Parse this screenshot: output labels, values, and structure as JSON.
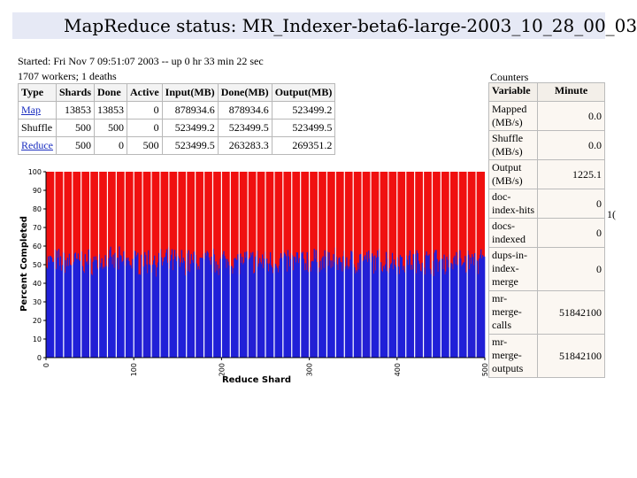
{
  "title": "MapReduce status: MR_Indexer-beta6-large-2003_10_28_00_03",
  "status_line": "Started: Fri Nov 7 09:51:07 2003 -- up 0 hr 33 min 22 sec",
  "workers_line": "1707 workers; 1 deaths",
  "jobs_table": {
    "headers": [
      "Type",
      "Shards",
      "Done",
      "Active",
      "Input(MB)",
      "Done(MB)",
      "Output(MB)"
    ],
    "rows": [
      {
        "type": "Map",
        "link": true,
        "cells": [
          "13853",
          "13853",
          "0",
          "878934.6",
          "878934.6",
          "523499.2"
        ]
      },
      {
        "type": "Shuffle",
        "link": false,
        "cells": [
          "500",
          "500",
          "0",
          "523499.2",
          "523499.5",
          "523499.5"
        ]
      },
      {
        "type": "Reduce",
        "link": true,
        "cells": [
          "500",
          "0",
          "500",
          "523499.5",
          "263283.3",
          "269351.2"
        ]
      }
    ]
  },
  "counters": {
    "title": "Counters",
    "headers": [
      "Variable",
      "Minute"
    ],
    "rows": [
      {
        "name": "Mapped (MB/s)",
        "value": "0.0"
      },
      {
        "name": "Shuffle (MB/s)",
        "value": "0.0"
      },
      {
        "name": "Output (MB/s)",
        "value": "1225.1"
      },
      {
        "name": "doc-index-hits",
        "value": "0"
      },
      {
        "name": "docs-indexed",
        "value": "0"
      },
      {
        "name": "dups-in-index-merge",
        "value": "0"
      },
      {
        "name": "mr-merge-calls",
        "value": "51842100"
      },
      {
        "name": "mr-merge-outputs",
        "value": "51842100"
      }
    ],
    "clipped_fragment": "1("
  },
  "chart_data": {
    "type": "bar",
    "xlabel": "Reduce Shard",
    "ylabel": "Percent Completed",
    "xlim": [
      0,
      500
    ],
    "ylim": [
      0,
      100
    ],
    "xticks": [
      0,
      100,
      200,
      300,
      400,
      500
    ],
    "yticks": [
      0,
      10,
      20,
      30,
      40,
      50,
      60,
      70,
      80,
      90,
      100
    ],
    "grid": false,
    "series": [
      {
        "color": "#2020d8",
        "approx_mean": 49,
        "approx_range": [
          38,
          60
        ]
      },
      {
        "color": "#f01010",
        "value": 100
      }
    ],
    "separator_spacing_shards": 10
  },
  "colors": {
    "completed": "#2020d8",
    "remaining": "#f01010",
    "title_bg": "#e6e9f5"
  }
}
